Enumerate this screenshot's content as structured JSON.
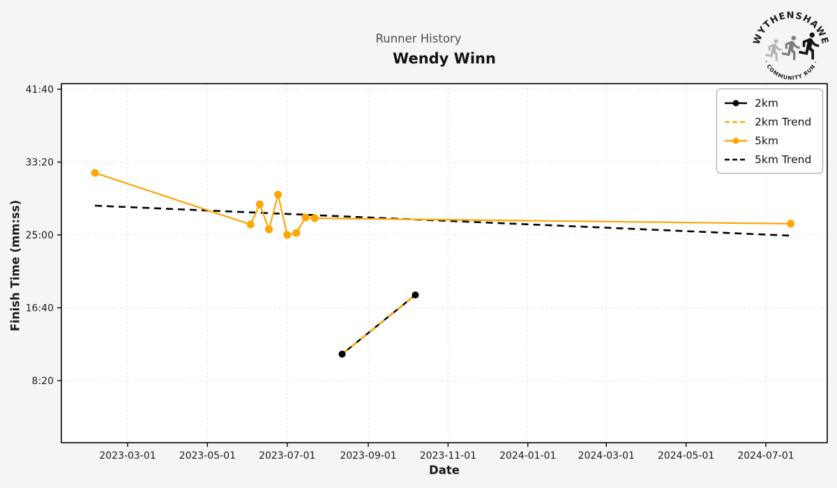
{
  "header": {
    "suptitle": "Runner History",
    "title": "Wendy Winn"
  },
  "logo": {
    "top_text": "WYTHENSHAWE",
    "bottom_text": "· COMMUNITY RUN ·"
  },
  "colors": {
    "background": "#f5f5f5",
    "plot_background": "#ffffff",
    "grid": "#d9d9d9",
    "axis": "#000000",
    "orange": "#FFA500",
    "black": "#000000",
    "suptitle_gray": "#4d4d4d"
  },
  "chart_data": {
    "type": "line",
    "title": "Runner History",
    "subtitle": "Wendy Winn",
    "xlabel": "Date",
    "ylabel": "Finish Time (mm:ss)",
    "grid": true,
    "legend_position": "upper right",
    "x_ticks": [
      "2023-03-01",
      "2023-05-01",
      "2023-07-01",
      "2023-09-01",
      "2023-11-01",
      "2024-01-01",
      "2024-03-01",
      "2024-05-01",
      "2024-07-01"
    ],
    "y_ticks": [
      "41:40",
      "33:20",
      "25:00",
      "16:40",
      "8:20"
    ],
    "x_range": [
      "2023-01-09",
      "2024-08-17"
    ],
    "y_range_mmss": [
      "1:14",
      "42:18"
    ],
    "series": [
      {
        "name": "2km",
        "color": "#000000",
        "style": "solid",
        "marker": true,
        "points": [
          {
            "date": "2023-08-12",
            "time": "11:22"
          },
          {
            "date": "2023-10-07",
            "time": "18:08"
          }
        ]
      },
      {
        "name": "2km Trend",
        "color": "#FFA500",
        "style": "dashed",
        "marker": false,
        "points": [
          {
            "date": "2023-08-12",
            "time": "11:22"
          },
          {
            "date": "2023-10-07",
            "time": "18:08"
          }
        ]
      },
      {
        "name": "5km",
        "color": "#FFA500",
        "style": "solid",
        "marker": true,
        "points": [
          {
            "date": "2023-02-04",
            "time": "32:06"
          },
          {
            "date": "2023-06-03",
            "time": "26:12"
          },
          {
            "date": "2023-06-10",
            "time": "28:30"
          },
          {
            "date": "2023-06-17",
            "time": "25:38"
          },
          {
            "date": "2023-06-24",
            "time": "29:37"
          },
          {
            "date": "2023-07-01",
            "time": "25:00"
          },
          {
            "date": "2023-07-08",
            "time": "25:14"
          },
          {
            "date": "2023-07-15",
            "time": "27:00"
          },
          {
            "date": "2023-07-22",
            "time": "26:55"
          },
          {
            "date": "2024-07-20",
            "time": "26:17"
          }
        ]
      },
      {
        "name": "5km Trend",
        "color": "#000000",
        "style": "dashed",
        "marker": false,
        "points": [
          {
            "date": "2023-02-04",
            "time": "28:21"
          },
          {
            "date": "2024-07-20",
            "time": "24:55"
          }
        ]
      }
    ]
  }
}
